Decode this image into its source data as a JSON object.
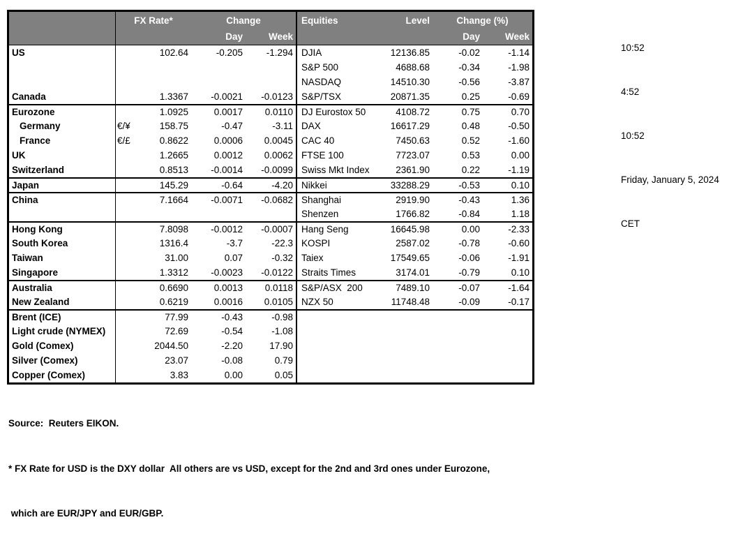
{
  "colors": {
    "header_bg": "#808080",
    "header_text": "#FFFFFF",
    "text": "#000000",
    "border": "#000000",
    "background": "#FFFFFF"
  },
  "table": {
    "header": {
      "fx_rate": "FX Rate*",
      "change": "Change",
      "day": "Day",
      "week": "Week",
      "equities": "Equities",
      "level": "Level",
      "change_pct": "Change (%)"
    },
    "rows": [
      {
        "region": "US",
        "indent": false,
        "group_start": false,
        "symbol": "",
        "fx": "102.64",
        "fx_day": "-0.205",
        "fx_week": "-1.294",
        "equity": "DJIA",
        "level": "12136.85",
        "eq_day": "-0.02",
        "eq_week": "-1.14"
      },
      {
        "region": "",
        "indent": false,
        "group_start": false,
        "symbol": "",
        "fx": "",
        "fx_day": "",
        "fx_week": "",
        "equity": "S&P 500",
        "level": "4688.68",
        "eq_day": "-0.34",
        "eq_week": "-1.98"
      },
      {
        "region": "",
        "indent": false,
        "group_start": false,
        "symbol": "",
        "fx": "",
        "fx_day": "",
        "fx_week": "",
        "equity": "NASDAQ",
        "level": "14510.30",
        "eq_day": "-0.56",
        "eq_week": "-3.87"
      },
      {
        "region": "Canada",
        "indent": false,
        "group_start": false,
        "symbol": "",
        "fx": "1.3367",
        "fx_day": "-0.0021",
        "fx_week": "-0.0123",
        "equity": "S&P/TSX",
        "level": "20871.35",
        "eq_day": "0.25",
        "eq_week": "-0.69"
      },
      {
        "region": "Eurozone",
        "indent": false,
        "group_start": true,
        "symbol": "",
        "fx": "1.0925",
        "fx_day": "0.0017",
        "fx_week": "0.0110",
        "equity": "DJ Eurostox 50",
        "level": "4108.72",
        "eq_day": "0.75",
        "eq_week": "0.70"
      },
      {
        "region": "Germany",
        "indent": true,
        "group_start": false,
        "symbol": "€/¥",
        "fx": "158.75",
        "fx_day": "-0.47",
        "fx_week": "-3.11",
        "equity": "DAX",
        "level": "16617.29",
        "eq_day": "0.48",
        "eq_week": "-0.50"
      },
      {
        "region": "France",
        "indent": true,
        "group_start": false,
        "symbol": "€/£",
        "fx": "0.8622",
        "fx_day": "0.0006",
        "fx_week": "0.0045",
        "equity": "CAC 40",
        "level": "7450.63",
        "eq_day": "0.52",
        "eq_week": "-1.60"
      },
      {
        "region": "UK",
        "indent": false,
        "group_start": false,
        "symbol": "",
        "fx": "1.2665",
        "fx_day": "0.0012",
        "fx_week": "0.0062",
        "equity": "FTSE 100",
        "level": "7723.07",
        "eq_day": "0.53",
        "eq_week": "0.00"
      },
      {
        "region": "Switzerland",
        "indent": false,
        "group_start": false,
        "symbol": "",
        "fx": "0.8513",
        "fx_day": "-0.0014",
        "fx_week": "-0.0099",
        "equity": "Swiss Mkt Index",
        "level": "2361.90",
        "eq_day": "0.22",
        "eq_week": "-1.19"
      },
      {
        "region": "Japan",
        "indent": false,
        "group_start": true,
        "symbol": "",
        "fx": "145.29",
        "fx_day": "-0.64",
        "fx_week": "-4.20",
        "equity": "Nikkei",
        "level": "33288.29",
        "eq_day": "-0.53",
        "eq_week": "0.10"
      },
      {
        "region": "China",
        "indent": false,
        "group_start": true,
        "symbol": "",
        "fx": "7.1664",
        "fx_day": "-0.0071",
        "fx_week": "-0.0682",
        "equity": "Shanghai",
        "level": "2919.90",
        "eq_day": "-0.43",
        "eq_week": "1.36"
      },
      {
        "region": "",
        "indent": false,
        "group_start": false,
        "symbol": "",
        "fx": "",
        "fx_day": "",
        "fx_week": "",
        "equity": "Shenzen",
        "level": "1766.82",
        "eq_day": "-0.84",
        "eq_week": "1.18"
      },
      {
        "region": "Hong Kong",
        "indent": false,
        "group_start": true,
        "symbol": "",
        "fx": "7.8098",
        "fx_day": "-0.0012",
        "fx_week": "-0.0007",
        "equity": "Hang Seng",
        "level": "16645.98",
        "eq_day": "0.00",
        "eq_week": "-2.33"
      },
      {
        "region": "South Korea",
        "indent": false,
        "group_start": false,
        "symbol": "",
        "fx": "1316.4",
        "fx_day": "-3.7",
        "fx_week": "-22.3",
        "equity": "KOSPI",
        "level": "2587.02",
        "eq_day": "-0.78",
        "eq_week": "-0.60"
      },
      {
        "region": "Taiwan",
        "indent": false,
        "group_start": false,
        "symbol": "",
        "fx": "31.00",
        "fx_day": "0.07",
        "fx_week": "-0.32",
        "equity": "Taiex",
        "level": "17549.65",
        "eq_day": "-0.06",
        "eq_week": "-1.91"
      },
      {
        "region": "Singapore",
        "indent": false,
        "group_start": false,
        "symbol": "",
        "fx": "1.3312",
        "fx_day": "-0.0023",
        "fx_week": "-0.0122",
        "equity": "Straits Times",
        "level": "3174.01",
        "eq_day": "-0.79",
        "eq_week": "0.10"
      },
      {
        "region": "Australia",
        "indent": false,
        "group_start": true,
        "symbol": "",
        "fx": "0.6690",
        "fx_day": "0.0013",
        "fx_week": "0.0118",
        "equity": "S&P/ASX  200",
        "level": "7489.10",
        "eq_day": "-0.07",
        "eq_week": "-1.64"
      },
      {
        "region": "New Zealand",
        "indent": false,
        "group_start": false,
        "symbol": "",
        "fx": "0.6219",
        "fx_day": "0.0016",
        "fx_week": "0.0105",
        "equity": "NZX 50",
        "level": "11748.48",
        "eq_day": "-0.09",
        "eq_week": "-0.17"
      },
      {
        "region": "Brent (ICE)",
        "indent": false,
        "group_start": true,
        "symbol": "",
        "fx": "77.99",
        "fx_day": "-0.43",
        "fx_week": "-0.98",
        "equity": "",
        "level": "",
        "eq_day": "",
        "eq_week": ""
      },
      {
        "region": "Light crude (NYMEX)",
        "indent": false,
        "group_start": false,
        "symbol": "",
        "fx": "72.69",
        "fx_day": "-0.54",
        "fx_week": "-1.08",
        "equity": "",
        "level": "",
        "eq_day": "",
        "eq_week": ""
      },
      {
        "region": "Gold (Comex)",
        "indent": false,
        "group_start": false,
        "symbol": "",
        "fx": "2044.50",
        "fx_day": "-2.20",
        "fx_week": "17.90",
        "equity": "",
        "level": "",
        "eq_day": "",
        "eq_week": ""
      },
      {
        "region": "Silver (Comex)",
        "indent": false,
        "group_start": false,
        "symbol": "",
        "fx": "23.07",
        "fx_day": "-0.08",
        "fx_week": "0.79",
        "equity": "",
        "level": "",
        "eq_day": "",
        "eq_week": ""
      },
      {
        "region": "Copper (Comex)",
        "indent": false,
        "group_start": false,
        "symbol": "",
        "fx": "3.83",
        "fx_day": "0.00",
        "fx_week": "0.05",
        "equity": "",
        "level": "",
        "eq_day": "",
        "eq_week": ""
      }
    ]
  },
  "timestamps": {
    "lines": [
      "10:52",
      "4:52",
      "10:52",
      "Friday, January 5, 2024",
      "CET"
    ]
  },
  "footer": {
    "source": "Source:  Reuters EIKON.",
    "note1": "* FX Rate for USD is the DXY dollar  All others are vs USD, except for the 2nd and 3rd ones under Eurozone,",
    "note2": " which are EUR/JPY and EUR/GBP."
  }
}
